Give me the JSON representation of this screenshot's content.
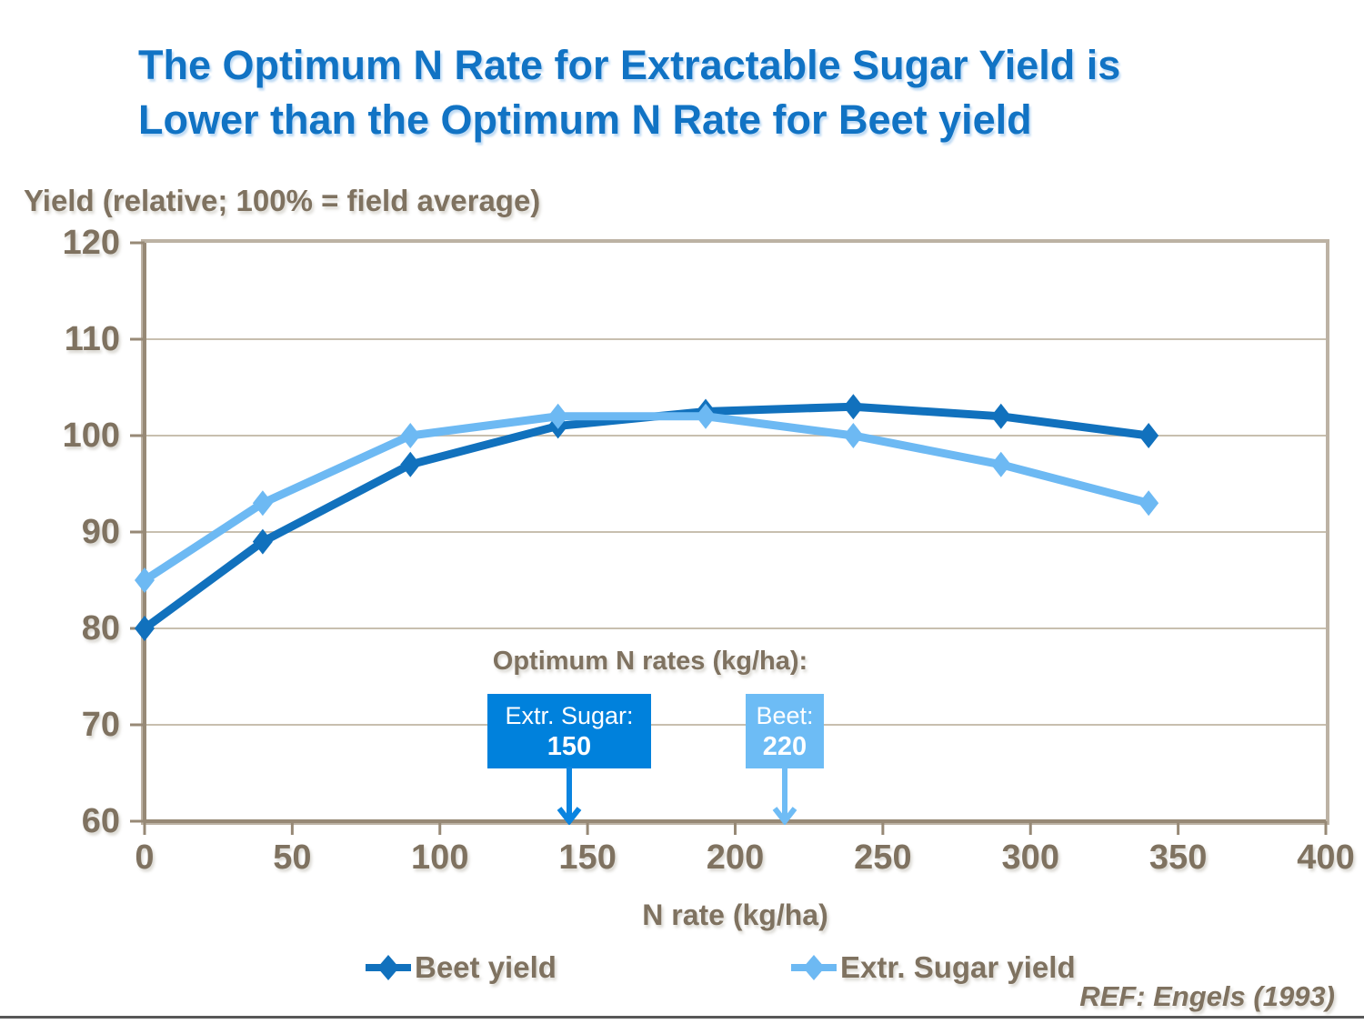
{
  "slide": {
    "title_line1": "The Optimum N Rate for Extractable Sugar Yield is",
    "title_line2": "Lower than the Optimum N Rate for Beet yield",
    "footer_ref": "REF: Engels (1993)",
    "colors": {
      "title_blue": "#1173c4",
      "text_brown": "#7f7260",
      "plot_border": "#bcb2a4",
      "axis_line": "#978976",
      "gridline": "#c8bfaf",
      "bottom_rule_gray": "#585858"
    }
  },
  "chart_data": {
    "type": "line",
    "title": "",
    "y_axis_title": "Yield (relative; 100% = field average)",
    "x_axis_title": "N rate (kg/ha)",
    "x": [
      0,
      40,
      90,
      140,
      190,
      240,
      290,
      340
    ],
    "series": [
      {
        "name": "Beet yield",
        "color": "#1171bd",
        "marker": "diamond",
        "values": [
          80,
          89,
          97,
          101,
          102.5,
          103,
          102,
          100
        ]
      },
      {
        "name": "Extr. Sugar yield",
        "color": "#6db9f3",
        "marker": "diamond",
        "values": [
          85,
          93,
          100,
          102,
          102,
          100,
          97,
          93
        ]
      }
    ],
    "xlim": [
      0,
      400
    ],
    "ylim": [
      60,
      120
    ],
    "x_ticks": [
      0,
      50,
      100,
      150,
      200,
      250,
      300,
      350,
      400
    ],
    "y_ticks": [
      60,
      70,
      80,
      90,
      100,
      110,
      120
    ],
    "grid": "horizontal",
    "legend_position": "bottom",
    "annotation": {
      "heading": "Optimum N rates (kg/ha):",
      "boxes": [
        {
          "label": "Extr. Sugar:",
          "value": "150",
          "color": "#0081dc",
          "arrow_color": "#0a84e0"
        },
        {
          "label": "Beet:",
          "value": "220",
          "color": "#6dbcf5",
          "arrow_color": "#6fbcf5"
        }
      ]
    }
  }
}
